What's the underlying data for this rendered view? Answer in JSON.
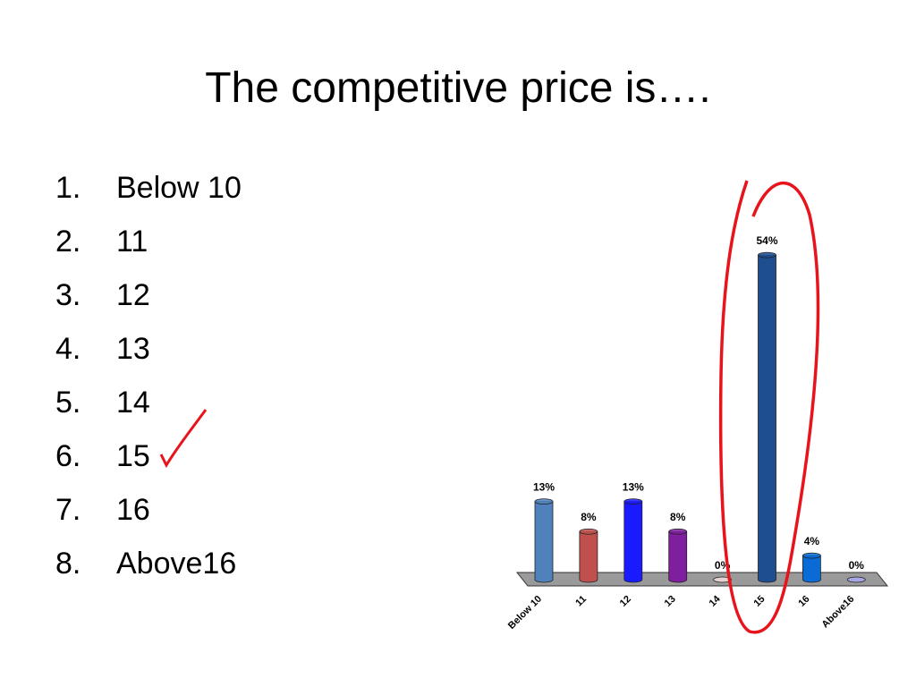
{
  "title": "The competitive price is….",
  "options": [
    {
      "number": "1.",
      "label": "Below 10"
    },
    {
      "number": "2.",
      "label": "11"
    },
    {
      "number": "3.",
      "label": "12"
    },
    {
      "number": "4.",
      "label": "13"
    },
    {
      "number": "5.",
      "label": "14"
    },
    {
      "number": "6.",
      "label": "15"
    },
    {
      "number": "7.",
      "label": "16"
    },
    {
      "number": "8.",
      "label": "Above16"
    }
  ],
  "chart_data": {
    "type": "bar",
    "categories": [
      "Below 10",
      "11",
      "12",
      "13",
      "14",
      "15",
      "16",
      "Above16"
    ],
    "values": [
      13,
      8,
      13,
      8,
      0,
      54,
      4,
      0
    ],
    "value_labels": [
      "13%",
      "8%",
      "13%",
      "8%",
      "0%",
      "54%",
      "4%",
      "0%"
    ],
    "colors": [
      "#4f81bd",
      "#c0504d",
      "#1a1aff",
      "#7f1f9f",
      "#f2dcdb",
      "#1f4e8f",
      "#0a6ad6",
      "#a9a9f0"
    ]
  }
}
